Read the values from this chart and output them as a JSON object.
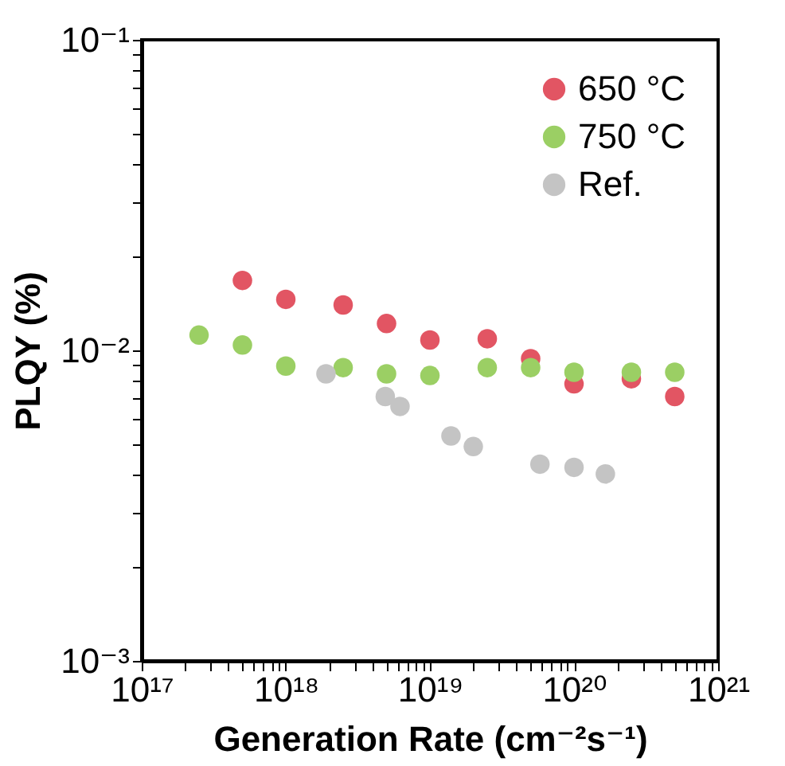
{
  "chart_data": {
    "type": "scatter",
    "xlabel": "Generation Rate (cm⁻²s⁻¹)",
    "ylabel": "PLQY (%)",
    "log": "xy",
    "xlim": [
      1e+17,
      1e+21
    ],
    "ylim": [
      0.001,
      0.1
    ],
    "xticks": [
      {
        "value": 1e+17,
        "label": "10¹⁷"
      },
      {
        "value": 2e+17,
        "label": null
      },
      {
        "value": 3e+17,
        "label": null
      },
      {
        "value": 4e+17,
        "label": null
      },
      {
        "value": 5e+17,
        "label": null
      },
      {
        "value": 6e+17,
        "label": null
      },
      {
        "value": 7e+17,
        "label": null
      },
      {
        "value": 8e+17,
        "label": null
      },
      {
        "value": 9e+17,
        "label": null
      },
      {
        "value": 1e+18,
        "label": "10¹⁸"
      },
      {
        "value": 2e+18,
        "label": null
      },
      {
        "value": 3e+18,
        "label": null
      },
      {
        "value": 4e+18,
        "label": null
      },
      {
        "value": 5e+18,
        "label": null
      },
      {
        "value": 6e+18,
        "label": null
      },
      {
        "value": 7e+18,
        "label": null
      },
      {
        "value": 8e+18,
        "label": null
      },
      {
        "value": 9e+18,
        "label": null
      },
      {
        "value": 1e+19,
        "label": "10¹⁹"
      },
      {
        "value": 2e+19,
        "label": null
      },
      {
        "value": 3e+19,
        "label": null
      },
      {
        "value": 4e+19,
        "label": null
      },
      {
        "value": 5e+19,
        "label": null
      },
      {
        "value": 6e+19,
        "label": null
      },
      {
        "value": 7e+19,
        "label": null
      },
      {
        "value": 8e+19,
        "label": null
      },
      {
        "value": 9e+19,
        "label": null
      },
      {
        "value": 1e+20,
        "label": "10²⁰"
      },
      {
        "value": 2e+20,
        "label": null
      },
      {
        "value": 3e+20,
        "label": null
      },
      {
        "value": 4e+20,
        "label": null
      },
      {
        "value": 5e+20,
        "label": null
      },
      {
        "value": 6e+20,
        "label": null
      },
      {
        "value": 7e+20,
        "label": null
      },
      {
        "value": 8e+20,
        "label": null
      },
      {
        "value": 9e+20,
        "label": null
      },
      {
        "value": 1e+21,
        "label": "10²¹"
      }
    ],
    "yticks": [
      {
        "value": 0.001,
        "label": "10⁻³"
      },
      {
        "value": 0.002,
        "label": null
      },
      {
        "value": 0.003,
        "label": null
      },
      {
        "value": 0.004,
        "label": null
      },
      {
        "value": 0.005,
        "label": null
      },
      {
        "value": 0.006,
        "label": null
      },
      {
        "value": 0.007,
        "label": null
      },
      {
        "value": 0.008,
        "label": null
      },
      {
        "value": 0.009,
        "label": null
      },
      {
        "value": 0.01,
        "label": "10⁻²"
      },
      {
        "value": 0.02,
        "label": null
      },
      {
        "value": 0.03,
        "label": null
      },
      {
        "value": 0.04,
        "label": null
      },
      {
        "value": 0.05,
        "label": null
      },
      {
        "value": 0.06,
        "label": null
      },
      {
        "value": 0.07,
        "label": null
      },
      {
        "value": 0.08,
        "label": null
      },
      {
        "value": 0.09,
        "label": null
      },
      {
        "value": 0.1,
        "label": "10⁻¹"
      }
    ],
    "legend": "top right",
    "marker": "circle",
    "grid": false,
    "series": [
      {
        "name": "650 °C",
        "color": "#e25563",
        "x": [
          5e+17,
          1e+18,
          2.5e+18,
          5e+18,
          1e+19,
          2.5e+19,
          5e+19,
          1e+20,
          2.5e+20,
          5e+20
        ],
        "values": [
          0.0168,
          0.0146,
          0.014,
          0.0122,
          0.0108,
          0.0109,
          0.0094,
          0.0078,
          0.0081,
          0.0071
        ]
      },
      {
        "name": "750 °C",
        "color": "#9bcf64",
        "x": [
          2.5e+17,
          5e+17,
          1e+18,
          2.5e+18,
          5e+18,
          1e+19,
          2.5e+19,
          5e+19,
          1e+20,
          2.5e+20,
          5e+20
        ],
        "values": [
          0.0112,
          0.0104,
          0.0089,
          0.0088,
          0.0084,
          0.0083,
          0.0088,
          0.0088,
          0.0085,
          0.0085,
          0.0085
        ]
      },
      {
        "name": "Ref.",
        "color": "#c4c4c4",
        "x": [
          1.9e+18,
          4.9e+18,
          6.2e+18,
          1.4e+19,
          2e+19,
          5.8e+19,
          1e+20,
          1.65e+20
        ],
        "values": [
          0.0084,
          0.0071,
          0.0066,
          0.0053,
          0.0049,
          0.0043,
          0.0042,
          0.004
        ]
      }
    ]
  }
}
